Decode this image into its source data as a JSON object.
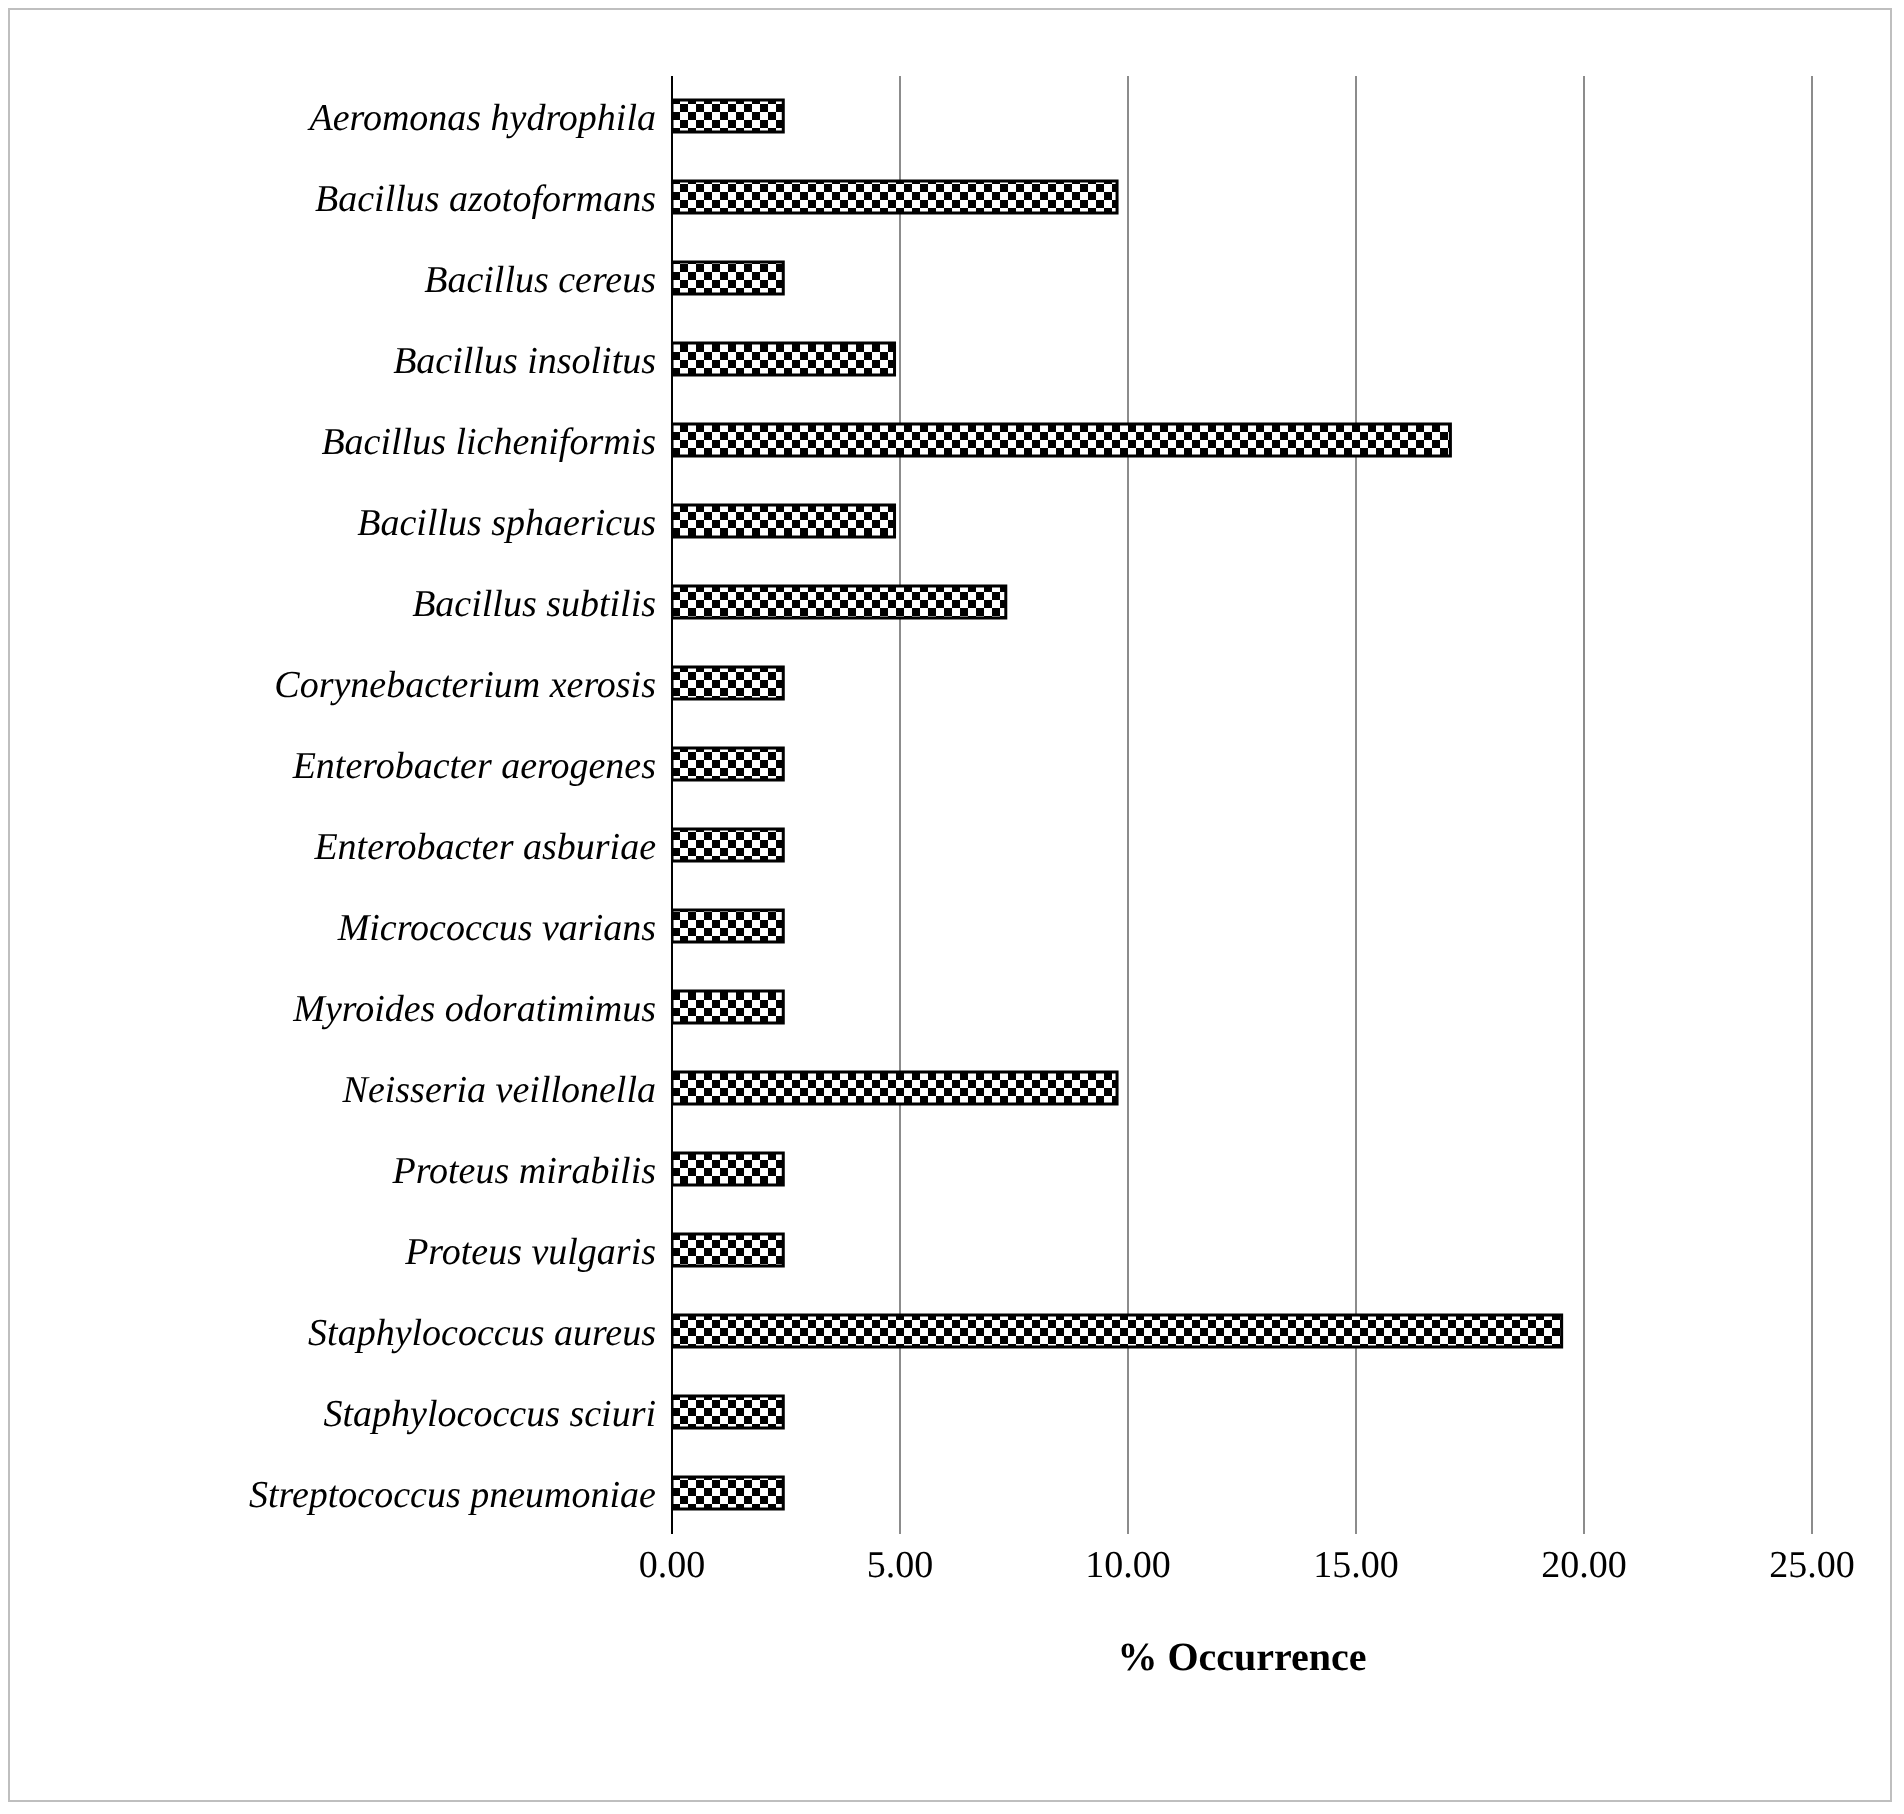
{
  "chart_data": {
    "type": "bar",
    "orientation": "horizontal",
    "xlabel": "% Occurrence",
    "categories": [
      "Aeromonas hydrophila",
      "Bacillus azotoformans",
      "Bacillus cereus",
      "Bacillus insolitus",
      "Bacillus licheniformis",
      "Bacillus sphaericus",
      "Bacillus subtilis",
      "Corynebacterium xerosis",
      "Enterobacter aerogenes",
      "Enterobacter asburiae",
      "Micrococcus varians",
      "Myroides odoratimimus",
      "Neisseria veillonella",
      "Proteus mirabilis",
      "Proteus vulgaris",
      "Staphylococcus aureus",
      "Staphylococcus sciuri",
      "Streptococcus pneumoniae"
    ],
    "values": [
      2.44,
      9.76,
      2.44,
      4.88,
      17.07,
      4.88,
      7.32,
      2.44,
      2.44,
      2.44,
      2.44,
      2.44,
      9.76,
      2.44,
      2.44,
      19.51,
      2.44,
      2.44
    ],
    "color": "#000000",
    "xlim": [
      0,
      25
    ],
    "xticks": [
      {
        "value": 0,
        "label": "0.00"
      },
      {
        "value": 5,
        "label": "5.00"
      },
      {
        "value": 10,
        "label": "10.00"
      },
      {
        "value": 15,
        "label": "15.00"
      },
      {
        "value": 20,
        "label": "20.00"
      },
      {
        "value": 25,
        "label": "25.00"
      }
    ],
    "grid": "x"
  }
}
